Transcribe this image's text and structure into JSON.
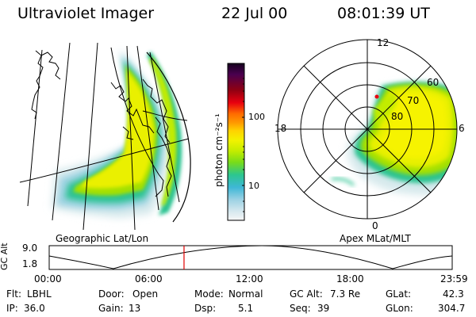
{
  "header": {
    "title": "Ultraviolet Imager",
    "date": "22 Jul 00",
    "time": "08:01:39 UT"
  },
  "left_panel": {
    "label": "Geographic Lat/Lon"
  },
  "right_panel": {
    "label": "Apex MLat/MLT",
    "mlt_labels": {
      "top": "12",
      "left": "18",
      "right": "6",
      "bottom": "0"
    },
    "lat_labels": [
      "60",
      "70",
      "80"
    ]
  },
  "colorbar": {
    "unit": "photon cm⁻²s⁻¹",
    "ticks": [
      "100",
      "10"
    ],
    "colors": [
      "#14001e",
      "#4a004f",
      "#8f0012",
      "#e8000f",
      "#ff6a00",
      "#ff9b00",
      "#ffd300",
      "#f2f200",
      "#c2ec00",
      "#79dc19",
      "#2cc68f",
      "#3eb7d6",
      "#9ed2e4",
      "#d4e7ee",
      "#f6f6f6"
    ]
  },
  "altitude_plot": {
    "ylabel": "GC Alt",
    "ymax": "9.0",
    "ymin": "1.8",
    "xticks": [
      "00:00",
      "06:00",
      "12:00",
      "18:00",
      "23:59"
    ],
    "current_marker_hour": 8.03,
    "marker_color": "#e00000"
  },
  "status": {
    "flt": {
      "label": "Flt:",
      "value": "LBHL"
    },
    "ip": {
      "label": "IP:",
      "value": "36.0"
    },
    "door": {
      "label": "Door:",
      "value": "Open"
    },
    "gain": {
      "label": "Gain:",
      "value": "13"
    },
    "mode": {
      "label": "Mode:",
      "value": "Normal"
    },
    "dsp": {
      "label": "Dsp:",
      "value": "5.1"
    },
    "gcalt": {
      "label": "GC Alt:",
      "value": "7.3 Re"
    },
    "seq": {
      "label": "Seq:",
      "value": "39"
    },
    "glat": {
      "label": "GLat:",
      "value": "42.3"
    },
    "glon": {
      "label": "GLon:",
      "value": "304.7"
    }
  }
}
